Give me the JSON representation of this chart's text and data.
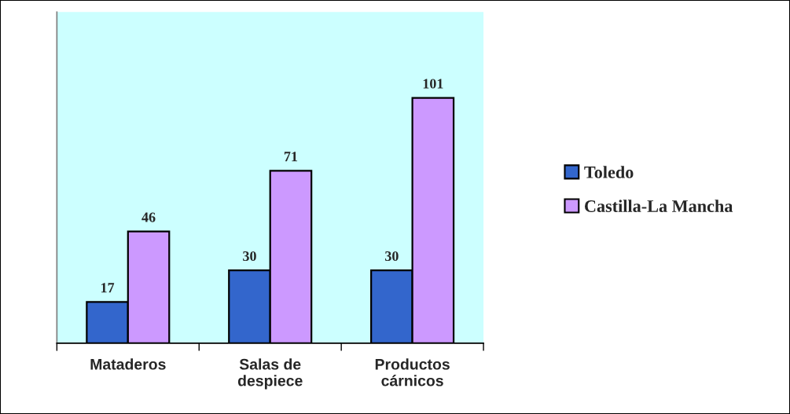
{
  "chart_data": {
    "type": "bar",
    "categories": [
      "Mataderos",
      "Salas de\ndespiece",
      "Productos\ncárnicos"
    ],
    "series": [
      {
        "name": "Toledo",
        "color": "#3366cc",
        "values": [
          17,
          30,
          30
        ]
      },
      {
        "name": "Castilla-La Mancha",
        "color": "#cc99ff",
        "values": [
          46,
          71,
          101
        ]
      }
    ],
    "data_labels": true,
    "legend": "right",
    "grid": false,
    "tick_labels": "x"
  }
}
